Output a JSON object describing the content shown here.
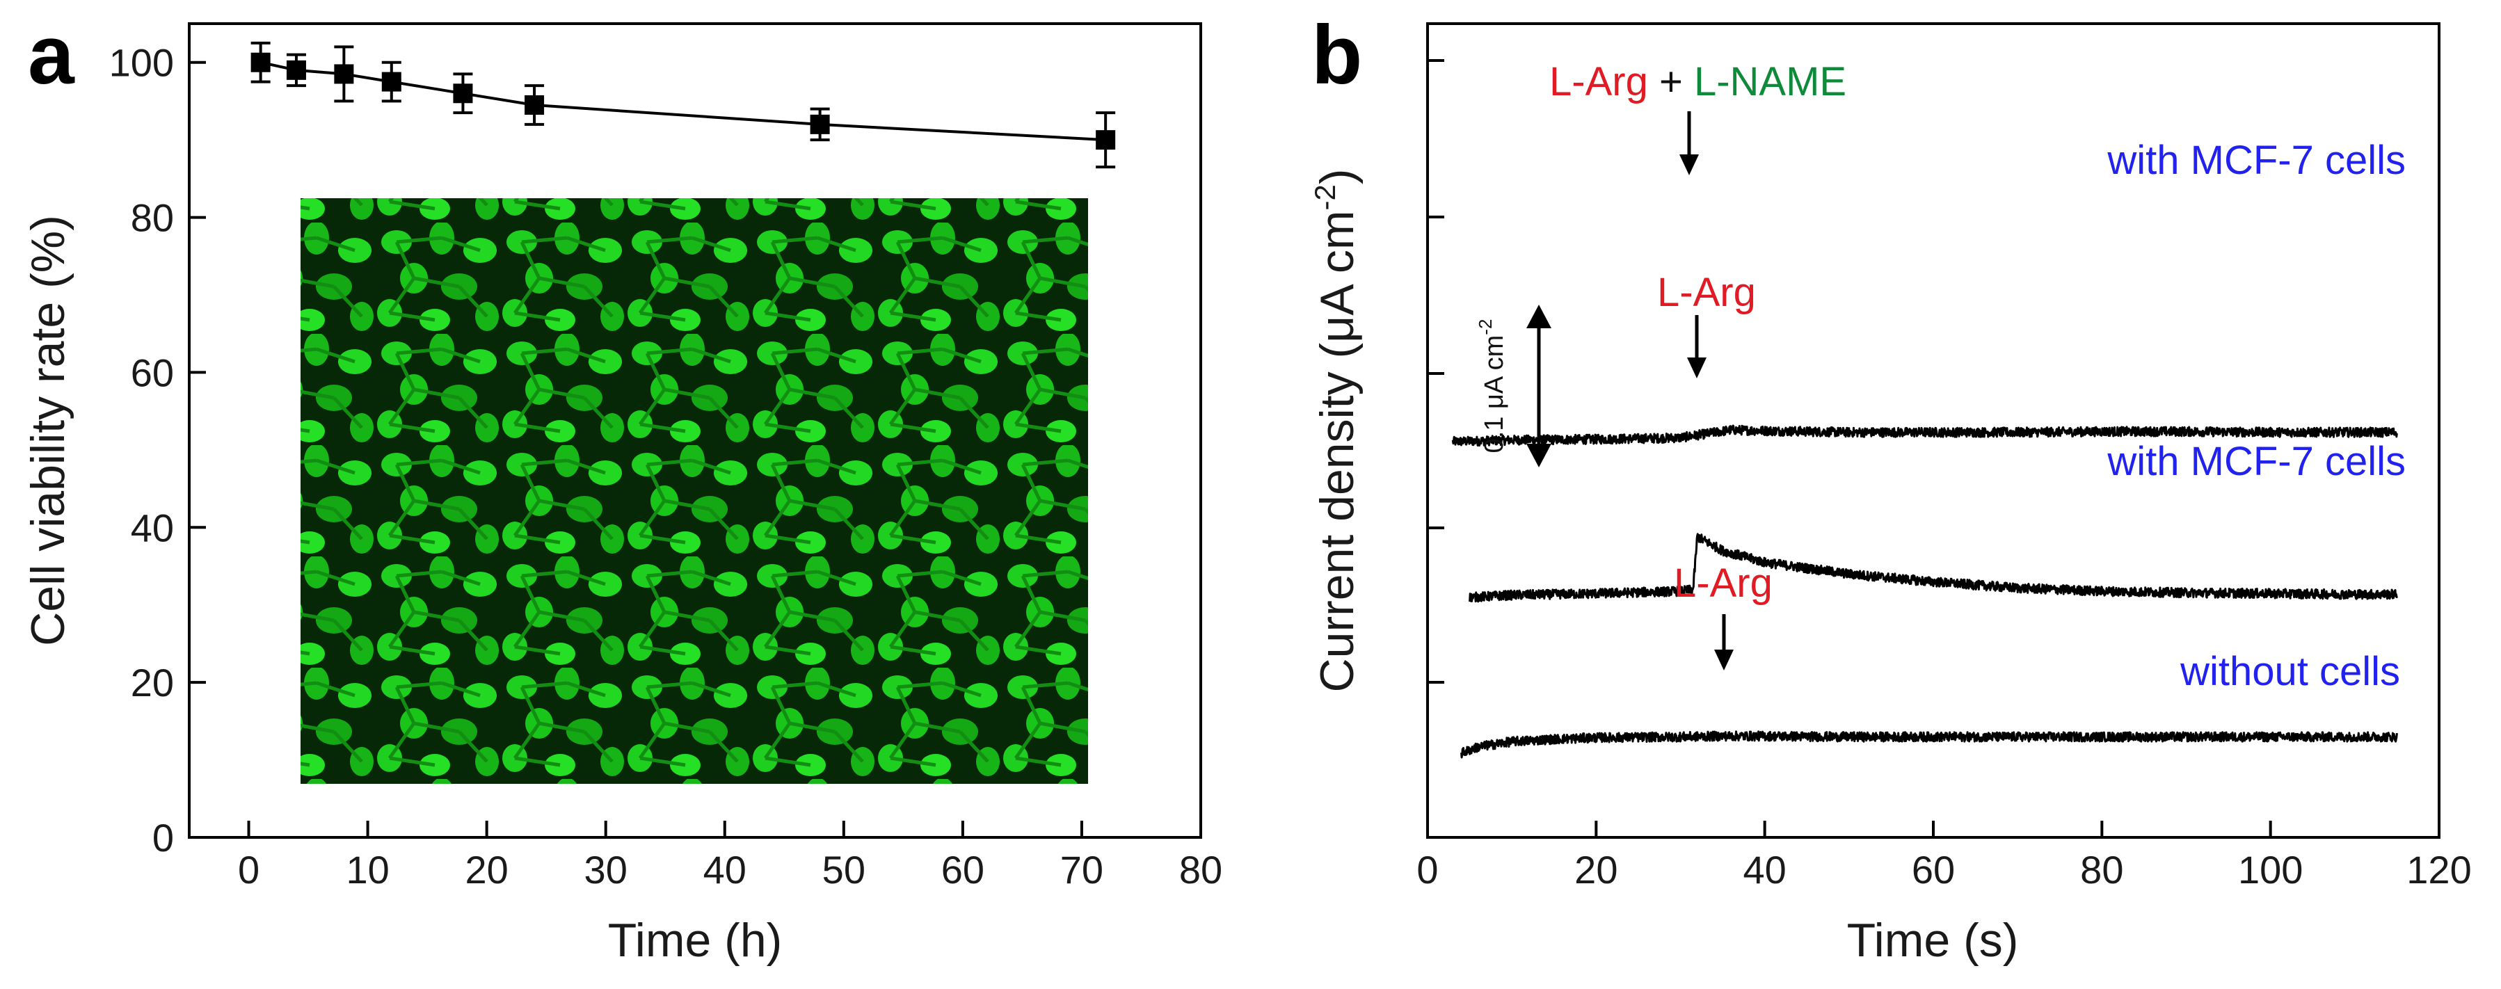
{
  "colors": {
    "red": "#e01b24",
    "green": "#0e8a3a",
    "blue": "#2222ee",
    "cell": "#19d419",
    "cell_bg": "#062806"
  },
  "chart_data": [
    {
      "panel": "a",
      "type": "line",
      "title": "",
      "xlabel": "Time (h)",
      "ylabel": "Cell viability rate (%)",
      "xlim": [
        -5,
        80
      ],
      "ylim": [
        0,
        105
      ],
      "x_ticks": [
        0,
        10,
        20,
        30,
        40,
        50,
        60,
        70,
        80
      ],
      "y_ticks": [
        0,
        20,
        40,
        60,
        80,
        100
      ],
      "series": [
        {
          "name": "Cell viability",
          "marker": "square",
          "x": [
            1,
            4,
            8,
            12,
            18,
            24,
            48,
            72
          ],
          "values": [
            100,
            99,
            98.5,
            97.5,
            96,
            94.5,
            92,
            90
          ],
          "error": [
            2.5,
            2,
            3.5,
            2.5,
            2.5,
            2.5,
            2,
            3.5
          ]
        }
      ],
      "inset": "fluorescence micrograph of MCF-7 cells (green)"
    },
    {
      "panel": "b",
      "type": "line",
      "title": "",
      "xlabel": "Time (s)",
      "ylabel": "Current density (μA cm⁻²)",
      "xlim": [
        0,
        120
      ],
      "x_ticks": [
        0,
        20,
        40,
        60,
        80,
        100,
        120
      ],
      "y_ticks": "unlabeled",
      "scale_bar": "0.1 μA cm⁻²",
      "series": [
        {
          "name": "with MCF-7 cells (L-Arg + L-NAME)",
          "label": "with MCF-7 cells",
          "offset_uA": 0.4,
          "stimulus_time_s": 32,
          "annotation": {
            "part1": "L-Arg",
            "plus": "+",
            "part2": "L-NAME"
          },
          "x": [
            3,
            10,
            20,
            30,
            33,
            36,
            40,
            50,
            60,
            70,
            80,
            90,
            100,
            110,
            115
          ],
          "values": [
            0.0,
            0.002,
            0.003,
            0.005,
            0.01,
            0.015,
            0.014,
            0.012,
            0.012,
            0.012,
            0.013,
            0.013,
            0.012,
            0.012,
            0.012
          ]
        },
        {
          "name": "with MCF-7 cells (L-Arg)",
          "label": "with MCF-7 cells",
          "offset_uA": 0.2,
          "stimulus_time_s": 32,
          "annotation": {
            "part1": "L-Arg"
          },
          "x": [
            5,
            10,
            20,
            30,
            31.5,
            32,
            35,
            40,
            50,
            60,
            70,
            80,
            90,
            100,
            110,
            115
          ],
          "values": [
            0.0,
            0.003,
            0.005,
            0.008,
            0.01,
            0.078,
            0.06,
            0.045,
            0.03,
            0.02,
            0.012,
            0.008,
            0.006,
            0.005,
            0.004,
            0.004
          ]
        },
        {
          "name": "without cells (L-Arg)",
          "label": "without cells",
          "offset_uA": 0.0,
          "stimulus_time_s": 35.5,
          "annotation": {
            "part1": "L-Arg"
          },
          "x": [
            4,
            6,
            10,
            15,
            20,
            30,
            35,
            36,
            40,
            50,
            60,
            70,
            80,
            90,
            100,
            110,
            115
          ],
          "values": [
            0.0,
            0.008,
            0.015,
            0.018,
            0.02,
            0.021,
            0.022,
            0.022,
            0.022,
            0.021,
            0.021,
            0.021,
            0.021,
            0.021,
            0.021,
            0.021,
            0.021
          ]
        }
      ]
    }
  ],
  "panel_a": {
    "letter": "a",
    "xlabel": "Time (h)",
    "ylabel": "Cell viability rate (%)",
    "x_tick_labels": [
      "0",
      "10",
      "20",
      "30",
      "40",
      "50",
      "60",
      "70",
      "80"
    ],
    "y_tick_labels": [
      "0",
      "20",
      "40",
      "60",
      "80",
      "100"
    ]
  },
  "panel_b": {
    "letter": "b",
    "xlabel": "Time (s)",
    "ylabel_main": "Current density (μA cm",
    "ylabel_sup": "-2",
    "ylabel_close": ")",
    "x_tick_labels": [
      "0",
      "20",
      "40",
      "60",
      "80",
      "100",
      "120"
    ],
    "scale_bar_main": "0.1 μA cm",
    "scale_bar_sup": "-2",
    "ann_top_red": "L-Arg",
    "ann_top_plus": " + ",
    "ann_top_green": "L-NAME",
    "ann_mid_red": "L-Arg",
    "ann_bot_red": "L-Arg",
    "label_top": "with MCF-7 cells",
    "label_mid": "with MCF-7 cells",
    "label_bot": "without cells"
  }
}
